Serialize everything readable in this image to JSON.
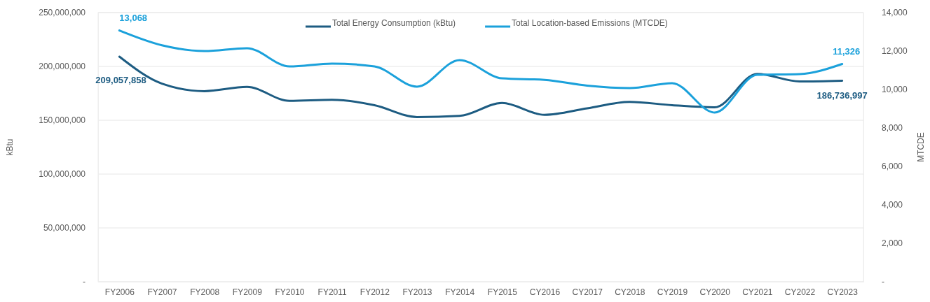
{
  "chart_data": {
    "type": "line",
    "ylabel": "kBtu",
    "y2label": "MTCDE",
    "categories": [
      "FY2006",
      "FY2007",
      "FY2008",
      "FY2009",
      "FY2010",
      "FY2011",
      "FY2012",
      "FY2013",
      "FY2014",
      "FY2015",
      "CY2016",
      "CY2017",
      "CY2018",
      "CY2019",
      "CY2020",
      "CY2021",
      "CY2022",
      "CY2023"
    ],
    "series": [
      {
        "name": "Total Energy Consumption (kBtu)",
        "color": "#1d5c82",
        "values": [
          209057858,
          184000000,
          177000000,
          181000000,
          168000000,
          169000000,
          164000000,
          153000000,
          154000000,
          166000000,
          155000000,
          161000000,
          167000000,
          164000000,
          162000000,
          193000000,
          186000000,
          186736997
        ],
        "value_labels": [
          "209,057,858",
          null,
          null,
          null,
          null,
          null,
          null,
          null,
          null,
          null,
          null,
          null,
          null,
          null,
          null,
          null,
          null,
          "186,736,997"
        ]
      },
      {
        "name": "Total Location-based Emissions (MTCDE)",
        "color": "#1ba1db",
        "axis": "y2",
        "values": [
          13068,
          12300,
          12000,
          12150,
          11200,
          11350,
          11200,
          10150,
          11530,
          10580,
          10500,
          10200,
          10070,
          10330,
          8800,
          10760,
          10800,
          11326
        ],
        "value_labels": [
          "13,068",
          null,
          null,
          null,
          null,
          null,
          null,
          null,
          null,
          null,
          null,
          null,
          null,
          null,
          null,
          null,
          null,
          "11,326"
        ]
      }
    ],
    "ylim": [
      0,
      250000000
    ],
    "yticks": [
      {
        "value": 0,
        "label": "-"
      },
      {
        "value": 50000000,
        "label": "50,000,000"
      },
      {
        "value": 100000000,
        "label": "100,000,000"
      },
      {
        "value": 150000000,
        "label": "150,000,000"
      },
      {
        "value": 200000000,
        "label": "200,000,000"
      },
      {
        "value": 250000000,
        "label": "250,000,000"
      }
    ],
    "y2lim": [
      0,
      14000
    ],
    "y2ticks": [
      {
        "value": 0,
        "label": "-"
      },
      {
        "value": 2000,
        "label": "2,000"
      },
      {
        "value": 4000,
        "label": "4,000"
      },
      {
        "value": 6000,
        "label": "6,000"
      },
      {
        "value": 8000,
        "label": "8,000"
      },
      {
        "value": 10000,
        "label": "10,000"
      },
      {
        "value": 12000,
        "label": "12,000"
      },
      {
        "value": 14000,
        "label": "14,000"
      }
    ],
    "grid": "y",
    "legend": "top",
    "marker": "none",
    "line_style": "solid"
  }
}
